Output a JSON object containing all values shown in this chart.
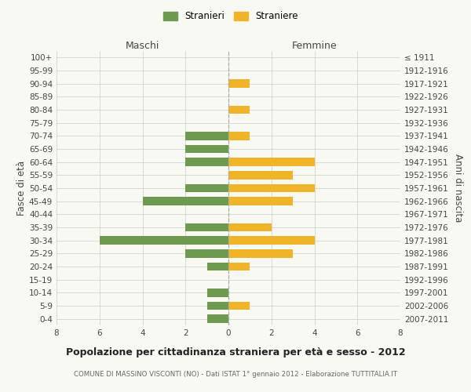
{
  "age_groups": [
    "100+",
    "95-99",
    "90-94",
    "85-89",
    "80-84",
    "75-79",
    "70-74",
    "65-69",
    "60-64",
    "55-59",
    "50-54",
    "45-49",
    "40-44",
    "35-39",
    "30-34",
    "25-29",
    "20-24",
    "15-19",
    "10-14",
    "5-9",
    "0-4"
  ],
  "birth_years": [
    "≤ 1911",
    "1912-1916",
    "1917-1921",
    "1922-1926",
    "1927-1931",
    "1932-1936",
    "1937-1941",
    "1942-1946",
    "1947-1951",
    "1952-1956",
    "1957-1961",
    "1962-1966",
    "1967-1971",
    "1972-1976",
    "1977-1981",
    "1982-1986",
    "1987-1991",
    "1992-1996",
    "1997-2001",
    "2002-2006",
    "2007-2011"
  ],
  "maschi": [
    0,
    0,
    0,
    0,
    0,
    0,
    2,
    2,
    2,
    0,
    2,
    4,
    0,
    2,
    6,
    2,
    1,
    0,
    1,
    1,
    1
  ],
  "femmine": [
    0,
    0,
    1,
    0,
    1,
    0,
    1,
    0,
    4,
    3,
    4,
    3,
    0,
    2,
    4,
    3,
    1,
    0,
    0,
    1,
    0
  ],
  "maschi_color": "#6d9a4e",
  "femmine_color": "#f0b429",
  "background_color": "#f9f9f4",
  "grid_color": "#cccccc",
  "title": "Popolazione per cittadinanza straniera per età e sesso - 2012",
  "subtitle": "COMUNE DI MASSINO VISCONTI (NO) - Dati ISTAT 1° gennaio 2012 - Elaborazione TUTTITALIA.IT",
  "ylabel_left": "Fasce di età",
  "ylabel_right": "Anni di nascita",
  "xlabel_maschi": "Maschi",
  "xlabel_femmine": "Femmine",
  "legend_maschi": "Stranieri",
  "legend_femmine": "Straniere",
  "xlim": 8,
  "bar_height": 0.65
}
